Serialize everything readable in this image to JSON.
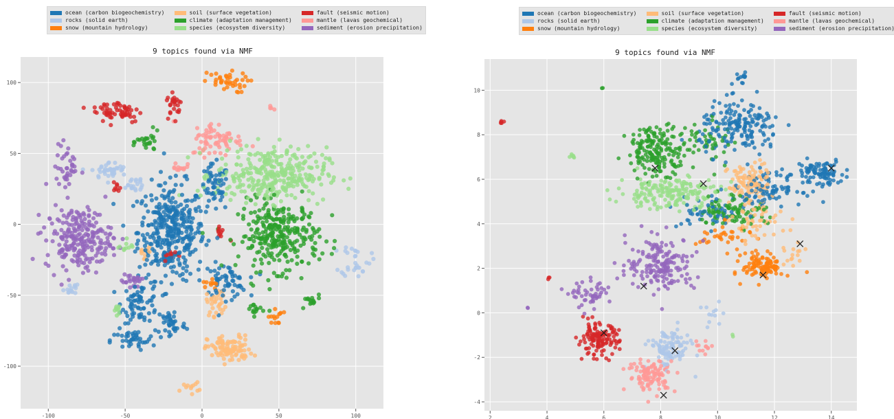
{
  "legend": {
    "items": [
      {
        "label": "ocean (carbon biogeochemistry)",
        "color": "#1f77b4"
      },
      {
        "label": "rocks (solid earth)",
        "color": "#aec7e8"
      },
      {
        "label": "snow (mountain hydrology)",
        "color": "#ff7f0e"
      },
      {
        "label": "soil (surface vegetation)",
        "color": "#ffbb78"
      },
      {
        "label": "climate (adaptation management)",
        "color": "#2ca02c"
      },
      {
        "label": "species (ecosystem diversity)",
        "color": "#98df8a"
      },
      {
        "label": "fault (seismic motion)",
        "color": "#d62728"
      },
      {
        "label": "mantle (lavas geochemical)",
        "color": "#ff9896"
      },
      {
        "label": "sediment (erosion precipitation)",
        "color": "#9467bd"
      }
    ]
  },
  "chart_data": [
    {
      "type": "scatter",
      "title": "9 topics found via NMF",
      "xlim": [
        -118,
        118
      ],
      "ylim": [
        -130,
        118
      ],
      "xticks": [
        "-100",
        "-50",
        "0",
        "50",
        "100"
      ],
      "xtick_values": [
        -100,
        -50,
        0,
        50,
        100
      ],
      "yticks": [
        "100",
        "50",
        "0",
        "-50",
        "-100"
      ],
      "ytick_values": [
        100,
        50,
        0,
        -50,
        -100
      ],
      "grid": true,
      "series": [
        {
          "name": "ocean (carbon biogeochemistry)",
          "clusters": [
            [
              -20,
              -5,
              18,
              28,
              380
            ],
            [
              8,
              25,
              8,
              14,
              60
            ],
            [
              -40,
              -55,
              10,
              12,
              70
            ],
            [
              15,
              -40,
              12,
              10,
              60
            ],
            [
              -45,
              -82,
              12,
              6,
              40
            ],
            [
              -20,
              -70,
              8,
              10,
              40
            ]
          ]
        },
        {
          "name": "rocks (solid earth)",
          "clusters": [
            [
              -60,
              38,
              10,
              5,
              40
            ],
            [
              -85,
              -45,
              4,
              4,
              14
            ],
            [
              100,
              -25,
              8,
              10,
              30
            ],
            [
              -45,
              28,
              8,
              6,
              20
            ]
          ]
        },
        {
          "name": "snow (mountain hydrology)",
          "clusters": [
            [
              15,
              100,
              12,
              6,
              40
            ],
            [
              48,
              -65,
              4,
              5,
              14
            ],
            [
              5,
              -42,
              4,
              4,
              10
            ]
          ]
        },
        {
          "name": "soil (surface vegetation)",
          "clusters": [
            [
              18,
              -88,
              12,
              8,
              100
            ],
            [
              -8,
              -115,
              5,
              3,
              12
            ],
            [
              10,
              -55,
              6,
              8,
              30
            ],
            [
              -38,
              -20,
              4,
              4,
              10
            ]
          ]
        },
        {
          "name": "climate (adaptation management)",
          "clusters": [
            [
              50,
              -8,
              22,
              20,
              300
            ],
            [
              -35,
              58,
              6,
              6,
              25
            ],
            [
              70,
              -55,
              6,
              5,
              15
            ],
            [
              35,
              -60,
              5,
              4,
              15
            ]
          ]
        },
        {
          "name": "species (ecosystem diversity)",
          "clusters": [
            [
              45,
              35,
              30,
              16,
              330
            ],
            [
              -55,
              -60,
              2,
              3,
              10
            ],
            [
              -50,
              -15,
              4,
              4,
              10
            ]
          ]
        },
        {
          "name": "fault (seismic motion)",
          "clusters": [
            [
              -55,
              80,
              14,
              7,
              60
            ],
            [
              -18,
              85,
              4,
              8,
              25
            ],
            [
              -55,
              25,
              2,
              4,
              8
            ],
            [
              -20,
              -22,
              4,
              3,
              12
            ],
            [
              12,
              -5,
              4,
              5,
              10
            ]
          ]
        },
        {
          "name": "mantle (lavas geochemical)",
          "clusters": [
            [
              10,
              60,
              14,
              10,
              70
            ],
            [
              -15,
              40,
              4,
              4,
              12
            ],
            [
              45,
              82,
              2,
              1,
              4
            ]
          ]
        },
        {
          "name": "sediment (erosion precipitation)",
          "clusters": [
            [
              -80,
              -10,
              18,
              18,
              240
            ],
            [
              -88,
              40,
              6,
              14,
              40
            ],
            [
              -45,
              -40,
              6,
              6,
              25
            ]
          ]
        }
      ]
    },
    {
      "type": "scatter",
      "title": "9 topics found via NMF",
      "xlim": [
        1.8,
        14.9
      ],
      "ylim": [
        -4.4,
        11.4
      ],
      "xticks": [
        "2",
        "4",
        "6",
        "8",
        "10",
        "12",
        "14"
      ],
      "xtick_values": [
        2,
        4,
        6,
        8,
        10,
        12,
        14
      ],
      "yticks": [
        "10",
        "8",
        "6",
        "4",
        "2",
        "0",
        "-2",
        "-4"
      ],
      "ytick_values": [
        10,
        8,
        6,
        4,
        2,
        0,
        -2,
        -4
      ],
      "grid": true,
      "centroids": [
        [
          7.8,
          6.5
        ],
        [
          9.5,
          5.8
        ],
        [
          14.0,
          6.5
        ],
        [
          12.9,
          3.1
        ],
        [
          11.6,
          1.7
        ],
        [
          7.4,
          1.2
        ],
        [
          6.0,
          -0.9
        ],
        [
          8.5,
          -1.7
        ],
        [
          8.1,
          -3.7
        ]
      ],
      "series": [
        {
          "name": "ocean (carbon biogeochemistry)",
          "clusters": [
            [
              10.8,
              8.3,
              1.2,
              1.0,
              180
            ],
            [
              13.6,
              6.3,
              0.7,
              0.5,
              90
            ],
            [
              11.8,
              5.6,
              1.0,
              0.6,
              90
            ],
            [
              9.8,
              4.5,
              1.0,
              0.6,
              50
            ],
            [
              10.8,
              10.6,
              0.3,
              0.2,
              12
            ]
          ]
        },
        {
          "name": "rocks (solid earth)",
          "clusters": [
            [
              8.3,
              -1.6,
              0.6,
              0.7,
              110
            ],
            [
              9.8,
              -0.2,
              0.4,
              0.5,
              12
            ]
          ]
        },
        {
          "name": "snow (mountain hydrology)",
          "clusters": [
            [
              11.6,
              2.1,
              0.6,
              0.5,
              110
            ],
            [
              10.2,
              3.4,
              0.8,
              0.5,
              35
            ]
          ]
        },
        {
          "name": "soil (surface vegetation)",
          "clusters": [
            [
              11.1,
              5.8,
              0.6,
              0.8,
              110
            ],
            [
              11.4,
              4.0,
              0.8,
              0.7,
              50
            ],
            [
              12.7,
              2.5,
              0.3,
              0.5,
              15
            ]
          ]
        },
        {
          "name": "climate (adaptation management)",
          "clusters": [
            [
              7.9,
              7.3,
              0.9,
              0.9,
              190
            ],
            [
              10.5,
              4.6,
              1.0,
              0.6,
              90
            ],
            [
              9.8,
              7.8,
              0.7,
              0.9,
              40
            ],
            [
              5.9,
              10.1,
              0.05,
              0.05,
              2
            ]
          ]
        },
        {
          "name": "species (ecosystem diversity)",
          "clusters": [
            [
              8.3,
              5.4,
              1.5,
              0.6,
              190
            ],
            [
              4.8,
              7.0,
              0.2,
              0.1,
              6
            ],
            [
              10.5,
              -1.1,
              0.1,
              0.1,
              2
            ]
          ]
        },
        {
          "name": "fault (seismic motion)",
          "clusters": [
            [
              5.8,
              -1.2,
              0.6,
              0.6,
              130
            ],
            [
              2.4,
              8.55,
              0.1,
              0.05,
              5
            ],
            [
              4.1,
              1.55,
              0.05,
              0.05,
              3
            ]
          ]
        },
        {
          "name": "mantle (lavas geochemical)",
          "clusters": [
            [
              7.7,
              -2.8,
              0.7,
              0.6,
              110
            ],
            [
              9.5,
              -1.5,
              0.3,
              0.3,
              12
            ]
          ]
        },
        {
          "name": "sediment (erosion precipitation)",
          "clusters": [
            [
              8.0,
              2.2,
              1.0,
              1.0,
              180
            ],
            [
              5.6,
              0.8,
              0.6,
              0.5,
              50
            ],
            [
              3.3,
              0.2,
              0.05,
              0.05,
              2
            ]
          ]
        }
      ]
    }
  ]
}
